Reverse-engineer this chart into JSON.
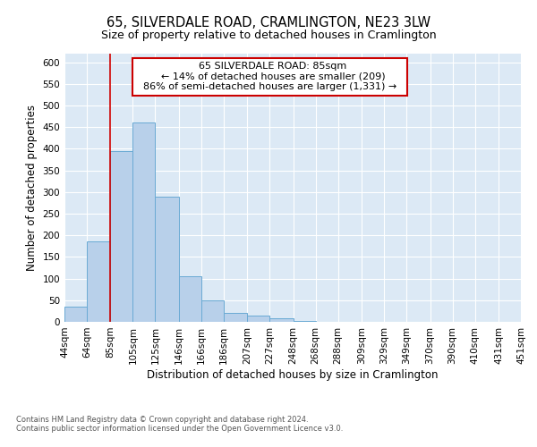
{
  "title": "65, SILVERDALE ROAD, CRAMLINGTON, NE23 3LW",
  "subtitle": "Size of property relative to detached houses in Cramlington",
  "xlabel": "Distribution of detached houses by size in Cramlington",
  "ylabel": "Number of detached properties",
  "footnote1": "Contains HM Land Registry data © Crown copyright and database right 2024.",
  "footnote2": "Contains public sector information licensed under the Open Government Licence v3.0.",
  "annotation_title": "65 SILVERDALE ROAD: 85sqm",
  "annotation_line1": "← 14% of detached houses are smaller (209)",
  "annotation_line2": "86% of semi-detached houses are larger (1,331) →",
  "bar_color": "#b8d0ea",
  "bar_edge_color": "#6aaad4",
  "red_line_x": 85,
  "red_line_color": "#cc0000",
  "annotation_box_color": "#ffffff",
  "annotation_box_edge": "#cc0000",
  "plot_bg_color": "#dce9f5",
  "ylim": [
    0,
    620
  ],
  "yticks": [
    0,
    50,
    100,
    150,
    200,
    250,
    300,
    350,
    400,
    450,
    500,
    550,
    600
  ],
  "bin_edges": [
    44,
    64,
    85,
    105,
    125,
    146,
    166,
    186,
    207,
    227,
    248,
    268,
    288,
    309,
    329,
    349,
    370,
    390,
    410,
    431,
    451
  ],
  "bin_labels": [
    "44sqm",
    "64sqm",
    "85sqm",
    "105sqm",
    "125sqm",
    "146sqm",
    "166sqm",
    "186sqm",
    "207sqm",
    "227sqm",
    "248sqm",
    "268sqm",
    "288sqm",
    "309sqm",
    "329sqm",
    "349sqm",
    "370sqm",
    "390sqm",
    "410sqm",
    "431sqm",
    "451sqm"
  ],
  "bar_heights": [
    35,
    185,
    395,
    460,
    290,
    105,
    50,
    20,
    15,
    8,
    3,
    1,
    1,
    0,
    0,
    0,
    1,
    0,
    0,
    1
  ],
  "title_fontsize": 10.5,
  "subtitle_fontsize": 9,
  "axis_label_fontsize": 8.5,
  "tick_fontsize": 7.5,
  "annotation_fontsize": 8,
  "footnote_fontsize": 6
}
